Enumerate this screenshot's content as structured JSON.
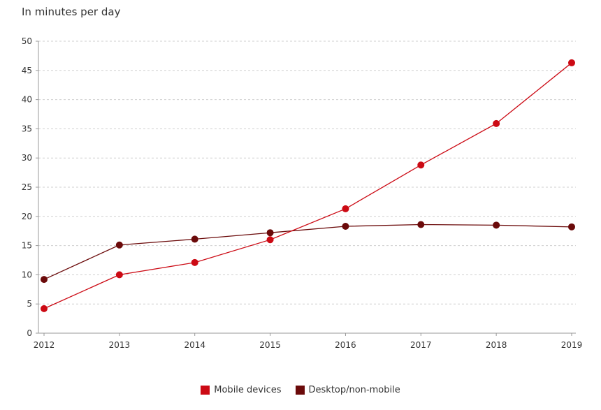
{
  "chart_data": {
    "type": "line",
    "subtitle": "In minutes per day",
    "x": [
      "2012",
      "2013",
      "2014",
      "2015",
      "2016",
      "2017",
      "2018",
      "2019"
    ],
    "ylim": [
      0,
      50
    ],
    "yticks": [
      0,
      5,
      10,
      15,
      20,
      25,
      30,
      35,
      40,
      45,
      50
    ],
    "grid": true,
    "legend_position": "bottom",
    "series": [
      {
        "name": "Mobile devices",
        "color": "#cc0a14",
        "values": [
          4.2,
          10.0,
          12.1,
          16.0,
          21.3,
          28.8,
          35.9,
          46.3
        ]
      },
      {
        "name": "Desktop/non-mobile",
        "color": "#6b0a0a",
        "values": [
          9.2,
          15.1,
          16.1,
          17.2,
          18.3,
          18.6,
          18.5,
          18.2
        ]
      }
    ]
  }
}
